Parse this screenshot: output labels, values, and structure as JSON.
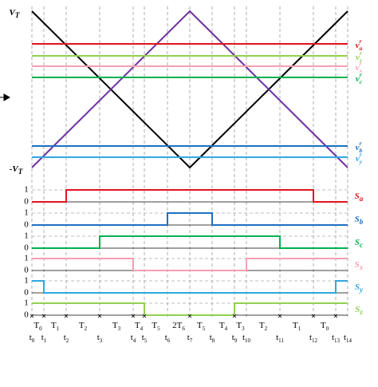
{
  "waveform": {
    "vmax": {
      "base": "V",
      "sub": "T"
    },
    "vmin": {
      "base": "-V",
      "sub": "T"
    },
    "references": [
      {
        "base": "v",
        "sup": "r",
        "sub": "a"
      },
      {
        "base": "v",
        "sup": "r",
        "sub": "z"
      },
      {
        "base": "v",
        "sup": "r",
        "sub": "x"
      },
      {
        "base": "v",
        "sup": "r",
        "sub": "c"
      },
      {
        "base": "v",
        "sup": "r",
        "sub": "b"
      },
      {
        "base": "v",
        "sup": "r",
        "sub": "y"
      }
    ]
  },
  "signals": [
    {
      "base": "S",
      "sub": "a",
      "high": "1",
      "low": "0"
    },
    {
      "base": "S",
      "sub": "b",
      "high": "1",
      "low": "0"
    },
    {
      "base": "S",
      "sub": "c",
      "high": "1",
      "low": "0"
    },
    {
      "base": "S",
      "sub": "x",
      "high": "1",
      "low": "0"
    },
    {
      "base": "S",
      "sub": "y",
      "high": "1",
      "low": "0"
    },
    {
      "base": "S",
      "sub": "z",
      "high": "1",
      "low": "0"
    }
  ],
  "intervals": [
    {
      "base": "T",
      "sub": "0"
    },
    {
      "base": "T",
      "sub": "1"
    },
    {
      "base": "T",
      "sub": "2"
    },
    {
      "base": "T",
      "sub": "3"
    },
    {
      "base": "T",
      "sub": "4"
    },
    {
      "base": "T",
      "sub": "5"
    },
    {
      "base": "2T",
      "sub": "6"
    },
    {
      "base": "T",
      "sub": "5"
    },
    {
      "base": "T",
      "sub": "4"
    },
    {
      "base": "T",
      "sub": "3"
    },
    {
      "base": "T",
      "sub": "2"
    },
    {
      "base": "T",
      "sub": "1"
    },
    {
      "base": "T",
      "sub": "0"
    }
  ],
  "times": [
    {
      "base": "t",
      "sub": "0"
    },
    {
      "base": "t",
      "sub": "1"
    },
    {
      "base": "t",
      "sub": "2"
    },
    {
      "base": "t",
      "sub": "3"
    },
    {
      "base": "t",
      "sub": "4"
    },
    {
      "base": "t",
      "sub": "5"
    },
    {
      "base": "t",
      "sub": "6"
    },
    {
      "base": "t",
      "sub": "7"
    },
    {
      "base": "t",
      "sub": "8"
    },
    {
      "base": "t",
      "sub": "9"
    },
    {
      "base": "t",
      "sub": "10"
    },
    {
      "base": "t",
      "sub": "11"
    },
    {
      "base": "t",
      "sub": "12"
    },
    {
      "base": "t",
      "sub": "13"
    },
    {
      "base": "t",
      "sub": "14"
    }
  ]
}
